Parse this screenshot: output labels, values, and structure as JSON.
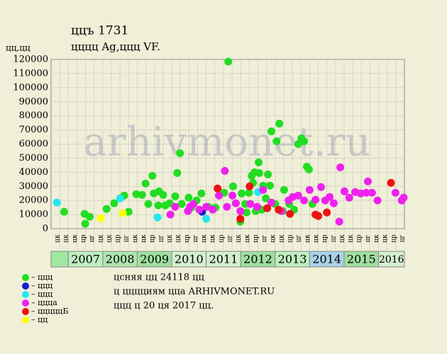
{
  "chart_data": {
    "type": "scatter",
    "title": "ццъ 1731",
    "subtitle": "цццц Ag,ццц VF.",
    "y_label": "цц,цц",
    "watermark": "arhivmonet.ru",
    "xlim": [
      2006.5,
      2016.75
    ],
    "ylim": [
      0,
      120000
    ],
    "yticks": [
      0,
      10000,
      20000,
      30000,
      40000,
      50000,
      60000,
      70000,
      80000,
      90000,
      100000,
      110000,
      120000
    ],
    "grid": true,
    "quarter_labels": [
      "цк",
      "цк",
      "цк",
      "цр",
      "цг",
      "цк",
      "цк",
      "цр",
      "цг",
      "цк",
      "цк",
      "цр",
      "цг",
      "цк",
      "цк",
      "цр",
      "цг",
      "цк",
      "цк",
      "цр",
      "цг",
      "цк",
      "цк",
      "цр",
      "цг",
      "цк",
      "цк",
      "цр",
      "цг",
      "цк",
      "цк",
      "цр",
      "цг",
      "цк",
      "цк",
      "цр",
      "цг",
      "цк",
      "цк",
      "цр",
      "цг"
    ],
    "years": [
      "2007",
      "2008",
      "2009",
      "2010",
      "2011",
      "2012",
      "2013",
      "2014",
      "2015",
      "2016"
    ],
    "year_colors": [
      "#bfeec0",
      "#aee6b0",
      "#9fdfa0",
      "#d6eed0",
      "#d6eed0",
      "#9fdfa0",
      "#bfeec0",
      "#a9d2e8",
      "#9fdfa0",
      "#d6eed0"
    ],
    "series": [
      {
        "name": "– ццц",
        "color": "#22dd22",
        "x": [
          2006.88,
          2007.47,
          2007.49,
          2007.62,
          2008.11,
          2008.33,
          2008.62,
          2008.75,
          2008.97,
          2009.14,
          2009.24,
          2009.32,
          2009.44,
          2009.48,
          2009.61,
          2009.63,
          2009.75,
          2009.81,
          2009.94,
          2010.1,
          2010.16,
          2010.24,
          2010.29,
          2010.49,
          2010.57,
          2010.72,
          2010.86,
          2011.07,
          2011.27,
          2011.52,
          2011.64,
          2011.78,
          2011.99,
          2012.03,
          2012.13,
          2012.17,
          2012.24,
          2012.32,
          2012.36,
          2012.4,
          2012.44,
          2012.52,
          2012.54,
          2012.61,
          2012.65,
          2012.73,
          2012.79,
          2012.85,
          2012.89,
          2013.0,
          2013.04,
          2013.12,
          2013.22,
          2013.26,
          2013.41,
          2013.55,
          2013.67,
          2013.76,
          2013.84,
          2013.92,
          2013.98,
          2014.08
        ],
        "values": [
          12000,
          10500,
          3500,
          8500,
          14000,
          18000,
          23500,
          12000,
          24500,
          24000,
          32000,
          17500,
          37500,
          25000,
          16500,
          26500,
          24000,
          16500,
          18000,
          23000,
          39500,
          53500,
          17500,
          22000,
          15000,
          20000,
          25000,
          15500,
          15000,
          25500,
          118500,
          30000,
          5000,
          25000,
          17500,
          11500,
          25500,
          37500,
          32500,
          40000,
          12500,
          47000,
          39500,
          13500,
          30500,
          21500,
          38500,
          30500,
          69000,
          17500,
          62000,
          74500,
          12500,
          27500,
          17500,
          13500,
          60000,
          64000,
          62000,
          44000,
          42000,
          17500
        ]
      },
      {
        "name": "– ццц",
        "color": "#1122cc",
        "x": [
          2010.88
        ],
        "values": [
          12000
        ]
      },
      {
        "name": "– ццц",
        "color": "#22e8f0",
        "x": [
          2006.67,
          2008.5,
          2009.59,
          2011.0,
          2012.5
        ],
        "values": [
          18500,
          21500,
          8000,
          7000,
          26000
        ]
      },
      {
        "name": "– цццa",
        "color": "#ee22ee",
        "x": [
          2009.96,
          2010.1,
          2010.47,
          2010.53,
          2010.63,
          2010.8,
          2011.0,
          2011.19,
          2011.37,
          2011.54,
          2011.6,
          2011.76,
          2011.86,
          2011.99,
          2012.28,
          2012.48,
          2012.65,
          2012.89,
          2013.18,
          2013.39,
          2013.51,
          2013.67,
          2013.84,
          2014.0,
          2014.17,
          2014.33,
          2014.45,
          2014.58,
          2014.7,
          2014.86,
          2014.89,
          2015.01,
          2015.15,
          2015.32,
          2015.48,
          2015.64,
          2015.69,
          2015.81,
          2015.97,
          2016.49,
          2016.67,
          2016.73
        ],
        "values": [
          10000,
          15500,
          12500,
          15500,
          17500,
          13500,
          15500,
          13500,
          23500,
          41000,
          15500,
          23500,
          18000,
          12500,
          17500,
          15500,
          27500,
          18500,
          12500,
          20000,
          22500,
          23500,
          20000,
          27500,
          20500,
          29500,
          20000,
          22500,
          18000,
          5000,
          43500,
          26500,
          22000,
          26000,
          25000,
          25500,
          33500,
          25500,
          20000,
          25500,
          20000,
          22000
        ]
      },
      {
        "name": "– цццццБ",
        "color": "#ee1111",
        "x": [
          2011.33,
          2011.99,
          2012.26,
          2012.77,
          2013.1,
          2013.43,
          2014.17,
          2014.25,
          2014.5,
          2016.36
        ],
        "values": [
          28500,
          7000,
          30000,
          14500,
          13500,
          10500,
          10000,
          9000,
          11500,
          32500
        ]
      },
      {
        "name": "– цц",
        "color": "#ffff00",
        "x": [
          2007.94,
          2008.58
        ],
        "values": [
          7500,
          11000
        ]
      }
    ],
    "notes": [
      "цсняя цц 24118 цц",
      "ц цццциям цца ARHIVMONET.RU",
      "ццц ц 20 ця 2017 цц."
    ]
  }
}
